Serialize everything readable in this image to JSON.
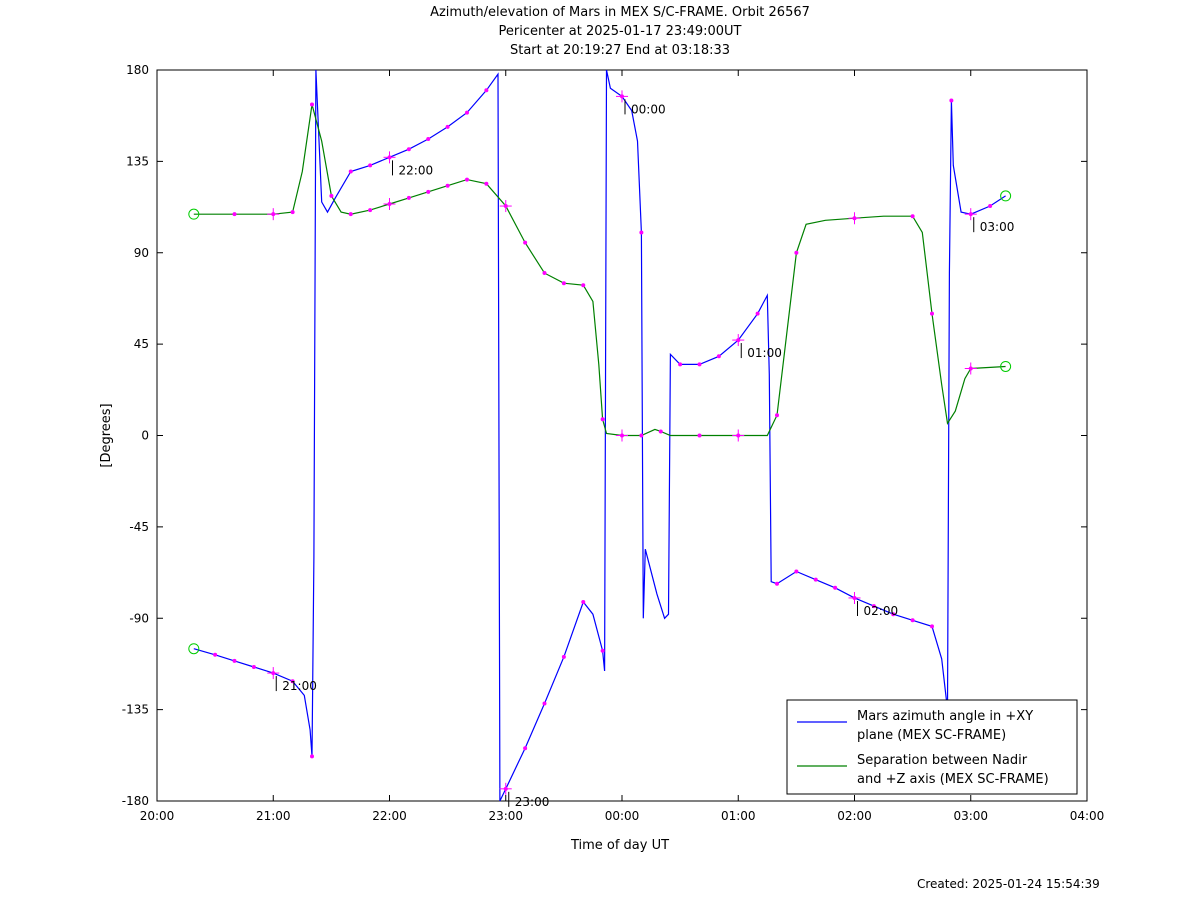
{
  "chart_data": {
    "type": "line",
    "title": [
      "Azimuth/elevation of Mars in MEX S/C-FRAME.  Orbit 26567",
      "Pericenter at 2025-01-17 23:49:00UT",
      "Start at 20:19:27 End at 03:18:33"
    ],
    "xlabel": "Time of day UT",
    "ylabel": "[Degrees]",
    "xlim": [
      "20:00",
      "04:00"
    ],
    "ylim": [
      -180,
      180
    ],
    "x_ticks": [
      "20:00",
      "21:00",
      "22:00",
      "23:00",
      "00:00",
      "01:00",
      "02:00",
      "03:00",
      "04:00"
    ],
    "y_ticks": [
      180,
      135,
      90,
      45,
      0,
      -45,
      -90,
      -135,
      -180
    ],
    "legend_placement": "bottom-right",
    "legend": [
      "Mars azimuth angle in +XY plane (MEX SC-FRAME)",
      "Separation between Nadir and +Z axis (MEX SC-FRAME)"
    ],
    "time_labels": [
      "21:00",
      "22:00",
      "23:00",
      "00:00",
      "01:00",
      "02:00",
      "03:00"
    ],
    "series": [
      {
        "name": "Mars azimuth angle in +XY plane (MEX SC-FRAME)",
        "color": "#0000ff",
        "points": [
          [
            "20:19",
            -105
          ],
          [
            "20:30",
            -108
          ],
          [
            "20:40",
            -111
          ],
          [
            "20:50",
            -114
          ],
          [
            "21:00",
            -117
          ],
          [
            "21:10",
            -121
          ],
          [
            "21:16",
            -128
          ],
          [
            "21:19",
            -145
          ],
          [
            "21:20",
            -158
          ],
          [
            "21:21",
            -60
          ],
          [
            "21:22",
            180
          ],
          [
            "21:25",
            115
          ],
          [
            "21:28",
            110
          ],
          [
            "21:32",
            117
          ],
          [
            "21:40",
            130
          ],
          [
            "21:50",
            133
          ],
          [
            "22:00",
            137
          ],
          [
            "22:10",
            141
          ],
          [
            "22:20",
            146
          ],
          [
            "22:30",
            152
          ],
          [
            "22:40",
            159
          ],
          [
            "22:50",
            170
          ],
          [
            "22:56",
            178
          ],
          [
            "22:57",
            -180
          ],
          [
            "23:00",
            -174
          ],
          [
            "23:10",
            -154
          ],
          [
            "23:20",
            -132
          ],
          [
            "23:30",
            -109
          ],
          [
            "23:40",
            -82
          ],
          [
            "23:45",
            -88
          ],
          [
            "23:50",
            -106
          ],
          [
            "23:51",
            -116
          ],
          [
            "23:52",
            180
          ],
          [
            "23:54",
            171
          ],
          [
            "24:00",
            167
          ],
          [
            "24:05",
            160
          ],
          [
            "24:08",
            145
          ],
          [
            "24:10",
            100
          ],
          [
            "24:11",
            -90
          ],
          [
            "24:12",
            -56
          ],
          [
            "24:18",
            -78
          ],
          [
            "24:22",
            -90
          ],
          [
            "24:24",
            -88
          ],
          [
            "24:25",
            40
          ],
          [
            "24:30",
            35
          ],
          [
            "24:40",
            35
          ],
          [
            "24:50",
            39
          ],
          [
            "25:00",
            47
          ],
          [
            "25:10",
            60
          ],
          [
            "25:15",
            69
          ],
          [
            "25:16",
            30
          ],
          [
            "25:17",
            -72
          ],
          [
            "25:20",
            -73
          ],
          [
            "25:30",
            -67
          ],
          [
            "25:40",
            -71
          ],
          [
            "25:50",
            -75
          ],
          [
            "26:00",
            -80
          ],
          [
            "26:10",
            -84
          ],
          [
            "26:20",
            -88
          ],
          [
            "26:30",
            -91
          ],
          [
            "26:40",
            -94
          ],
          [
            "26:45",
            -110
          ],
          [
            "26:48",
            -135
          ],
          [
            "26:49",
            80
          ],
          [
            "26:50",
            165
          ],
          [
            "26:51",
            133
          ],
          [
            "26:55",
            110
          ],
          [
            "27:00",
            109
          ],
          [
            "27:10",
            113
          ],
          [
            "27:18",
            118
          ]
        ]
      },
      {
        "name": "Separation between Nadir and +Z axis (MEX SC-FRAME)",
        "color": "#008000",
        "points": [
          [
            "20:19",
            109
          ],
          [
            "20:40",
            109
          ],
          [
            "21:00",
            109
          ],
          [
            "21:10",
            110
          ],
          [
            "21:15",
            130
          ],
          [
            "21:20",
            163
          ],
          [
            "21:25",
            145
          ],
          [
            "21:30",
            118
          ],
          [
            "21:35",
            110
          ],
          [
            "21:40",
            109
          ],
          [
            "21:50",
            111
          ],
          [
            "22:00",
            114
          ],
          [
            "22:10",
            117
          ],
          [
            "22:20",
            120
          ],
          [
            "22:30",
            123
          ],
          [
            "22:40",
            126
          ],
          [
            "22:50",
            124
          ],
          [
            "23:00",
            113
          ],
          [
            "23:10",
            95
          ],
          [
            "23:20",
            80
          ],
          [
            "23:30",
            75
          ],
          [
            "23:40",
            74
          ],
          [
            "23:45",
            66
          ],
          [
            "23:48",
            35
          ],
          [
            "23:50",
            8
          ],
          [
            "23:52",
            1
          ],
          [
            "24:00",
            0
          ],
          [
            "24:10",
            0
          ],
          [
            "24:17",
            3
          ],
          [
            "24:20",
            2
          ],
          [
            "24:25",
            0
          ],
          [
            "24:40",
            0
          ],
          [
            "25:00",
            0
          ],
          [
            "25:15",
            0
          ],
          [
            "25:20",
            10
          ],
          [
            "25:25",
            50
          ],
          [
            "25:30",
            90
          ],
          [
            "25:35",
            104
          ],
          [
            "25:45",
            106
          ],
          [
            "26:00",
            107
          ],
          [
            "26:15",
            108
          ],
          [
            "26:30",
            108
          ],
          [
            "26:35",
            100
          ],
          [
            "26:40",
            60
          ],
          [
            "26:45",
            25
          ],
          [
            "26:48",
            6
          ],
          [
            "26:52",
            12
          ],
          [
            "26:57",
            28
          ],
          [
            "27:00",
            33
          ],
          [
            "27:18",
            34
          ]
        ]
      }
    ]
  },
  "created": "Created: 2025-01-24 15:54:39"
}
